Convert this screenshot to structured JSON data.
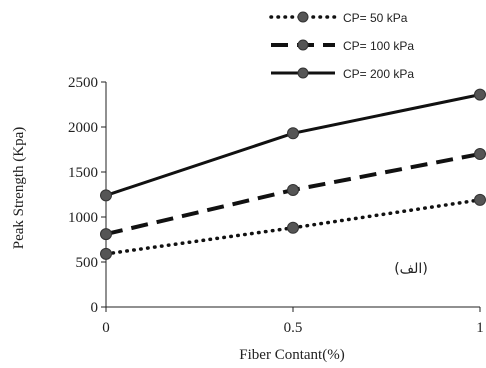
{
  "chart_data": {
    "type": "line",
    "title": "",
    "xlabel": "Fiber Contant(%)",
    "ylabel": "Peak Strength (Kpa)",
    "x": [
      0,
      0.5,
      1
    ],
    "x_tick_labels": [
      "0",
      "0.5",
      "1"
    ],
    "xlim": [
      0,
      1
    ],
    "ylim": [
      0,
      2500
    ],
    "y_ticks": [
      0,
      500,
      1000,
      1500,
      2000,
      2500
    ],
    "grid": false,
    "legend_position": "top-right",
    "annotation": "(الف)",
    "series": [
      {
        "name": "CP= 50 kPa",
        "style": "dotted",
        "values": [
          590,
          880,
          1190
        ]
      },
      {
        "name": "CP= 100 kPa",
        "style": "dashed",
        "values": [
          810,
          1300,
          1700
        ]
      },
      {
        "name": "CP= 200 kPa",
        "style": "solid",
        "values": [
          1240,
          1930,
          2360
        ]
      }
    ],
    "colors": {
      "line": "#111111",
      "marker": "#555555",
      "axis": "#222222"
    }
  }
}
